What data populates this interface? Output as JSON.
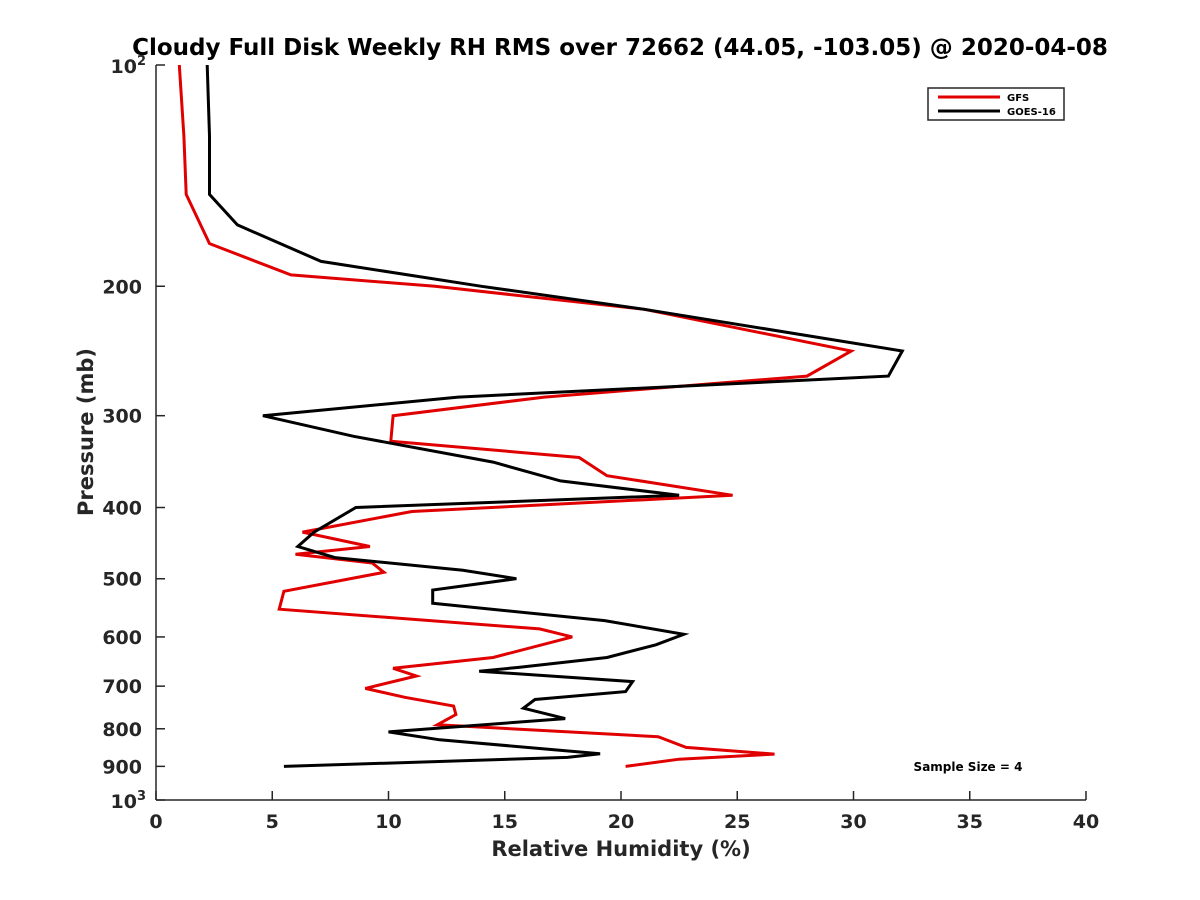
{
  "chart_data": {
    "type": "line",
    "title": "Cloudy Full Disk Weekly RH RMS over 72662 (44.05, -103.05) @ 2020-04-08",
    "xlabel": "Relative Humidity (%)",
    "ylabel": "Pressure (mb)",
    "xlim": [
      0,
      40
    ],
    "ylim": [
      100,
      1000
    ],
    "y_scale": "log",
    "y_reversed": true,
    "grid": false,
    "legend_position": "top-right",
    "x_ticks": [
      "0",
      "5",
      "10",
      "15",
      "20",
      "25",
      "30",
      "35",
      "40"
    ],
    "y_ticks": [
      {
        "value": 200,
        "label": "200"
      },
      {
        "value": 300,
        "label": "300"
      },
      {
        "value": 400,
        "label": "400"
      },
      {
        "value": 500,
        "label": "500"
      },
      {
        "value": 600,
        "label": "600"
      },
      {
        "value": 700,
        "label": "700"
      },
      {
        "value": 800,
        "label": "800"
      },
      {
        "value": 900,
        "label": "900"
      }
    ],
    "y_ticks_exp": [
      {
        "value": 100,
        "base": "10",
        "exp": "2"
      },
      {
        "value": 1000,
        "base": "10",
        "exp": "3"
      }
    ],
    "annotation": "Sample Size = 4",
    "series": [
      {
        "name": "GFS",
        "color": "#e00000",
        "points": [
          [
            1.0,
            100
          ],
          [
            1.2,
            125
          ],
          [
            1.3,
            150
          ],
          [
            2.3,
            175
          ],
          [
            5.8,
            193
          ],
          [
            12.0,
            200
          ],
          [
            21.0,
            215
          ],
          [
            29.9,
            245
          ],
          [
            28.0,
            265
          ],
          [
            16.7,
            283
          ],
          [
            10.2,
            300
          ],
          [
            10.1,
            325
          ],
          [
            18.2,
            342
          ],
          [
            19.4,
            362
          ],
          [
            24.8,
            385
          ],
          [
            11.0,
            405
          ],
          [
            6.3,
            432
          ],
          [
            9.2,
            452
          ],
          [
            6.0,
            463
          ],
          [
            9.3,
            476
          ],
          [
            9.8,
            490
          ],
          [
            5.5,
            520
          ],
          [
            5.3,
            550
          ],
          [
            16.5,
            585
          ],
          [
            17.9,
            600
          ],
          [
            14.5,
            640
          ],
          [
            10.2,
            662
          ],
          [
            11.2,
            678
          ],
          [
            9.0,
            705
          ],
          [
            10.7,
            725
          ],
          [
            12.8,
            745
          ],
          [
            12.9,
            765
          ],
          [
            12.1,
            790
          ],
          [
            21.6,
            820
          ],
          [
            22.8,
            848
          ],
          [
            26.6,
            866
          ],
          [
            22.5,
            880
          ],
          [
            20.2,
            900
          ]
        ]
      },
      {
        "name": "GOES-16",
        "color": "#000000",
        "points": [
          [
            2.2,
            100
          ],
          [
            2.3,
            125
          ],
          [
            2.3,
            150
          ],
          [
            3.5,
            165
          ],
          [
            7.1,
            185
          ],
          [
            14.0,
            200
          ],
          [
            21.0,
            215
          ],
          [
            32.1,
            245
          ],
          [
            31.5,
            265
          ],
          [
            13.0,
            283
          ],
          [
            4.6,
            300
          ],
          [
            8.5,
            320
          ],
          [
            14.5,
            347
          ],
          [
            17.4,
            368
          ],
          [
            22.5,
            385
          ],
          [
            8.6,
            400
          ],
          [
            6.8,
            432
          ],
          [
            6.1,
            452
          ],
          [
            7.7,
            468
          ],
          [
            13.2,
            487
          ],
          [
            15.5,
            500
          ],
          [
            11.9,
            518
          ],
          [
            11.9,
            540
          ],
          [
            19.3,
            570
          ],
          [
            22.7,
            595
          ],
          [
            21.5,
            615
          ],
          [
            19.4,
            640
          ],
          [
            15.6,
            660
          ],
          [
            13.9,
            668
          ],
          [
            20.5,
            690
          ],
          [
            20.2,
            712
          ],
          [
            16.3,
            730
          ],
          [
            15.8,
            750
          ],
          [
            17.6,
            775
          ],
          [
            10.0,
            808
          ],
          [
            12.2,
            828
          ],
          [
            19.1,
            865
          ],
          [
            17.7,
            875
          ],
          [
            5.5,
            900
          ]
        ]
      }
    ]
  }
}
